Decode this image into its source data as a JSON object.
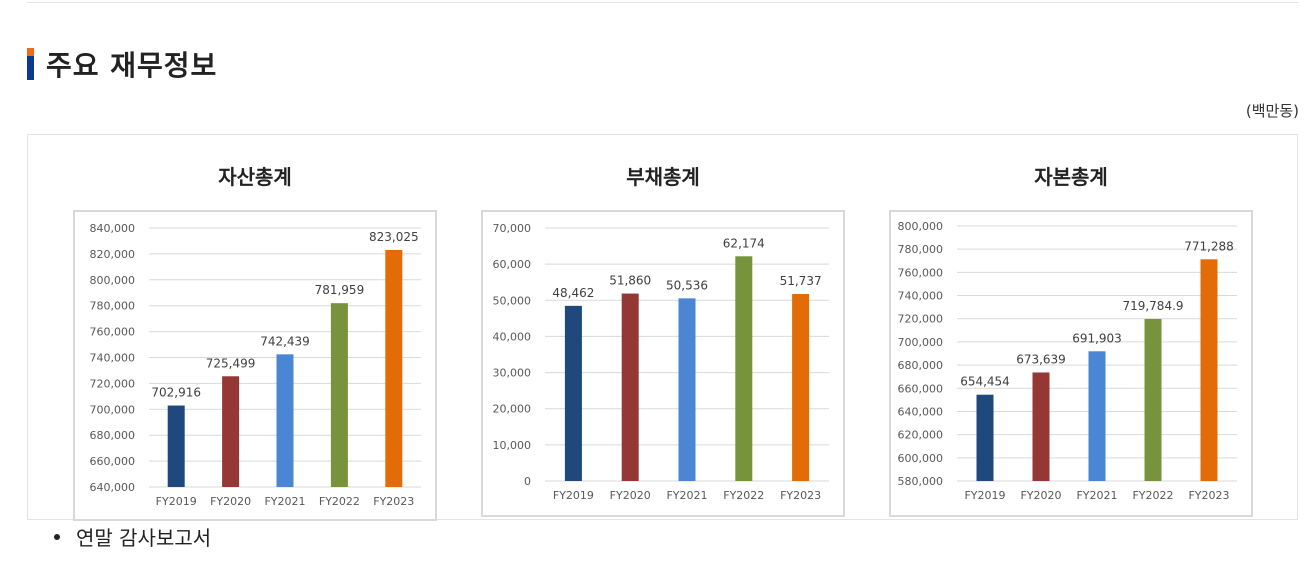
{
  "section": {
    "title": "주요 재무정보",
    "unit": "(백만동)"
  },
  "bullet": {
    "label": "연말 감사보고서"
  },
  "colors": [
    "#1f497d",
    "#953735",
    "#4a86d4",
    "#77933c",
    "#e36c09"
  ],
  "chart_data": [
    {
      "type": "bar",
      "title": "자산총계",
      "categories": [
        "FY2019",
        "FY2020",
        "FY2021",
        "FY2022",
        "FY2023"
      ],
      "values": [
        702916,
        725499,
        742439,
        781959,
        823025
      ],
      "value_labels": [
        "702,916",
        "725,499",
        "742,439",
        "781,959",
        "823,025"
      ],
      "ylim": [
        640000,
        840000
      ],
      "yticks": [
        640000,
        660000,
        680000,
        700000,
        720000,
        740000,
        760000,
        780000,
        800000,
        820000,
        840000
      ],
      "ytick_labels": [
        "640,000",
        "660,000",
        "680,000",
        "700,000",
        "720,000",
        "740,000",
        "760,000",
        "780,000",
        "800,000",
        "820,000",
        "840,000"
      ],
      "grid": true
    },
    {
      "type": "bar",
      "title": "부채총계",
      "categories": [
        "FY2019",
        "FY2020",
        "FY2021",
        "FY2022",
        "FY2023"
      ],
      "values": [
        48462,
        51860,
        50536,
        62174,
        51737
      ],
      "value_labels": [
        "48,462",
        "51,860",
        "50,536",
        "62,174",
        "51,737"
      ],
      "ylim": [
        0,
        70000
      ],
      "yticks": [
        0,
        10000,
        20000,
        30000,
        40000,
        50000,
        60000,
        70000
      ],
      "ytick_labels": [
        "0",
        "10,000",
        "20,000",
        "30,000",
        "40,000",
        "50,000",
        "60,000",
        "70,000"
      ],
      "grid": true
    },
    {
      "type": "bar",
      "title": "자본총계",
      "categories": [
        "FY2019",
        "FY2020",
        "FY2021",
        "FY2022",
        "FY2023"
      ],
      "values": [
        654454,
        673639,
        691903,
        719784.9,
        771288
      ],
      "value_labels": [
        "654,454",
        "673,639",
        "691,903",
        "719,784.9",
        "771,288"
      ],
      "ylim": [
        580000,
        800000
      ],
      "yticks": [
        580000,
        600000,
        620000,
        640000,
        660000,
        680000,
        700000,
        720000,
        740000,
        760000,
        780000,
        800000
      ],
      "ytick_labels": [
        "580,000",
        "600,000",
        "620,000",
        "640,000",
        "660,000",
        "680,000",
        "700,000",
        "720,000",
        "740,000",
        "760,000",
        "780,000",
        "800,000"
      ],
      "grid": true
    }
  ]
}
